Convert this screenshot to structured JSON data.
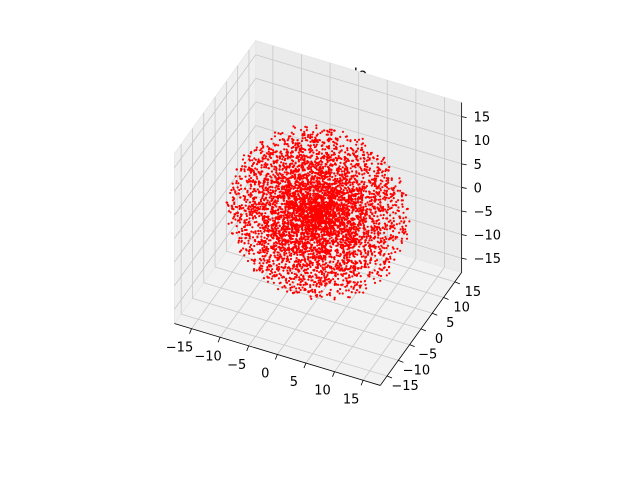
{
  "chart_data": {
    "type": "scatter",
    "projection": "3d",
    "title": "Initial Halo",
    "xlabel": "",
    "ylabel": "",
    "zlabel": "",
    "xlim": [
      -18,
      18
    ],
    "ylim": [
      -18,
      18
    ],
    "zlim": [
      -18,
      18
    ],
    "x_ticks": [
      -15,
      -10,
      -5,
      0,
      5,
      10,
      15
    ],
    "y_ticks": [
      -15,
      -10,
      -5,
      0,
      5,
      10,
      15
    ],
    "z_ticks": [
      -15,
      -10,
      -5,
      0,
      5,
      10,
      15
    ],
    "x_tick_labels": [
      "−15",
      "−10",
      "−5",
      "0",
      "5",
      "10",
      "15"
    ],
    "y_tick_labels": [
      "−15",
      "−10",
      "−5",
      "0",
      "5",
      "10",
      "15"
    ],
    "z_tick_labels": [
      "−15",
      "−10",
      "−5",
      "0",
      "5",
      "10",
      "15"
    ],
    "grid": true,
    "series": [
      {
        "marker_color": "#ff0000",
        "marker_size": "small",
        "distribution": "spherical halo",
        "center": [
          0,
          0,
          0
        ],
        "radius": 15,
        "approx_point_count": 5000
      }
    ]
  }
}
